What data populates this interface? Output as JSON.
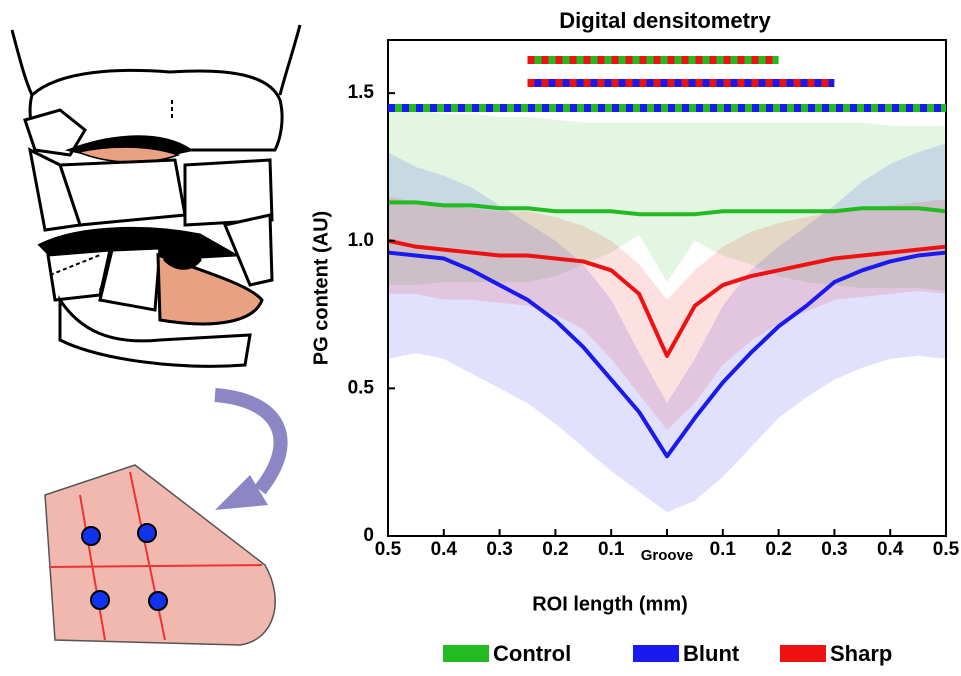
{
  "chart_data": {
    "type": "line",
    "title": "Digital densitometry",
    "x_label": "ROI length (mm)",
    "y_label": "PG content (AU)",
    "x": [
      -0.5,
      -0.45,
      -0.4,
      -0.35,
      -0.3,
      -0.25,
      -0.2,
      -0.15,
      -0.1,
      -0.05,
      0,
      0.05,
      0.1,
      0.15,
      0.2,
      0.25,
      0.3,
      0.35,
      0.4,
      0.45,
      0.5
    ],
    "xlim": [
      -0.5,
      0.5
    ],
    "xticks": [
      {
        "value": -0.5,
        "label": "0.5"
      },
      {
        "value": -0.4,
        "label": "0.4"
      },
      {
        "value": -0.3,
        "label": "0.3"
      },
      {
        "value": -0.2,
        "label": "0.2"
      },
      {
        "value": -0.1,
        "label": "0.1"
      },
      {
        "value": 0,
        "label": "Groove"
      },
      {
        "value": 0.1,
        "label": "0.1"
      },
      {
        "value": 0.2,
        "label": "0.2"
      },
      {
        "value": 0.3,
        "label": "0.3"
      },
      {
        "value": 0.4,
        "label": "0.4"
      },
      {
        "value": 0.5,
        "label": "0.5"
      }
    ],
    "ylim": [
      0,
      1.68
    ],
    "yticks": [
      0,
      0.5,
      {
        "value": 1,
        "label": "1.0"
      },
      1.5
    ],
    "series": [
      {
        "name": "Control",
        "color": "#22bb22",
        "values": [
          1.13,
          1.13,
          1.12,
          1.12,
          1.11,
          1.11,
          1.1,
          1.1,
          1.1,
          1.09,
          1.09,
          1.09,
          1.1,
          1.1,
          1.1,
          1.1,
          1.1,
          1.11,
          1.11,
          1.11,
          1.1
        ],
        "upper": [
          1.45,
          1.44,
          1.43,
          1.43,
          1.42,
          1.42,
          1.41,
          1.4,
          1.4,
          1.4,
          1.4,
          1.4,
          1.4,
          1.4,
          1.4,
          1.4,
          1.4,
          1.4,
          1.39,
          1.39,
          1.39
        ],
        "lower": [
          0.85,
          0.85,
          0.86,
          0.86,
          0.86,
          0.86,
          0.88,
          0.92,
          0.96,
          1.02,
          0.86,
          1.0,
          0.95,
          0.92,
          0.88,
          0.86,
          0.85,
          0.84,
          0.84,
          0.84,
          0.83
        ]
      },
      {
        "name": "Blunt",
        "color": "#1a1aee",
        "values": [
          0.96,
          0.95,
          0.94,
          0.9,
          0.85,
          0.8,
          0.73,
          0.64,
          0.53,
          0.42,
          0.27,
          0.4,
          0.52,
          0.62,
          0.71,
          0.78,
          0.86,
          0.9,
          0.93,
          0.95,
          0.96
        ],
        "upper": [
          1.3,
          1.25,
          1.22,
          1.18,
          1.12,
          1.06,
          1.0,
          0.92,
          0.8,
          0.62,
          0.45,
          0.6,
          0.78,
          0.9,
          0.98,
          1.05,
          1.12,
          1.2,
          1.26,
          1.3,
          1.33
        ],
        "lower": [
          0.6,
          0.62,
          0.6,
          0.55,
          0.5,
          0.45,
          0.38,
          0.3,
          0.22,
          0.15,
          0.08,
          0.12,
          0.2,
          0.3,
          0.4,
          0.47,
          0.53,
          0.57,
          0.6,
          0.61,
          0.6
        ]
      },
      {
        "name": "Sharp",
        "color": "#ee1111",
        "values": [
          1.0,
          0.98,
          0.97,
          0.96,
          0.95,
          0.95,
          0.94,
          0.93,
          0.9,
          0.82,
          0.61,
          0.78,
          0.85,
          0.88,
          0.9,
          0.92,
          0.94,
          0.95,
          0.96,
          0.97,
          0.98
        ],
        "upper": [
          1.15,
          1.13,
          1.12,
          1.11,
          1.1,
          1.1,
          1.08,
          1.05,
          1.0,
          0.92,
          0.8,
          0.9,
          0.98,
          1.03,
          1.06,
          1.08,
          1.1,
          1.11,
          1.12,
          1.13,
          1.14
        ],
        "lower": [
          0.82,
          0.82,
          0.8,
          0.8,
          0.79,
          0.78,
          0.75,
          0.7,
          0.6,
          0.48,
          0.36,
          0.45,
          0.58,
          0.66,
          0.72,
          0.76,
          0.8,
          0.81,
          0.82,
          0.83,
          0.82
        ]
      }
    ],
    "significance": [
      {
        "xrange": [
          -0.25,
          0.2
        ],
        "colors": [
          "#22bb22",
          "#ee1111"
        ]
      },
      {
        "xrange": [
          -0.25,
          0.3
        ],
        "colors": [
          "#1a1aee",
          "#ee1111"
        ]
      },
      {
        "xrange": [
          -0.5,
          0.5
        ],
        "colors": [
          "#22bb22",
          "#1a1aee"
        ]
      }
    ]
  }
}
